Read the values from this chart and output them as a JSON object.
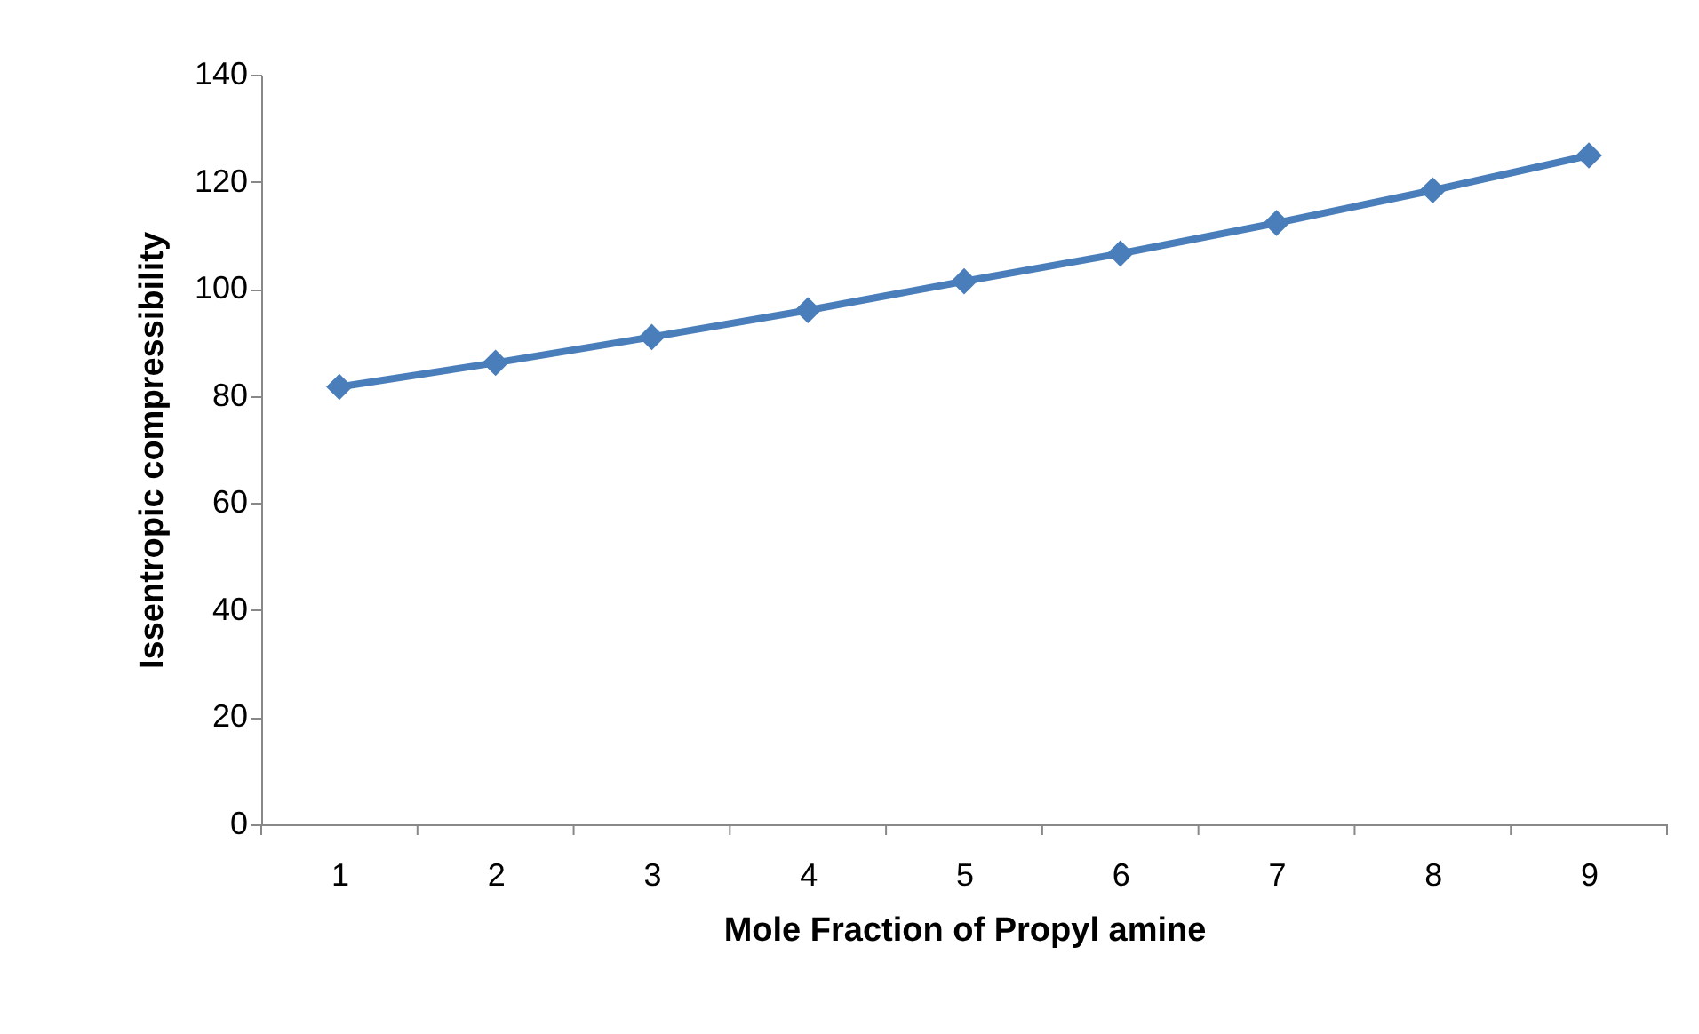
{
  "chart_data": {
    "type": "line",
    "xlabel": "Mole Fraction of Propyl amine",
    "ylabel": "Issentropic compressibility",
    "categories": [
      "1",
      "2",
      "3",
      "4",
      "5",
      "6",
      "7",
      "8",
      "9"
    ],
    "series": [
      {
        "color": "#4a7ebb",
        "values": [
          81.7,
          86.2,
          91.0,
          96.0,
          101.4,
          106.6,
          112.3,
          118.4,
          124.9
        ]
      }
    ],
    "ylim": [
      0,
      140
    ],
    "yticks": [
      0,
      20,
      40,
      60,
      80,
      100,
      120,
      140
    ],
    "grid": false,
    "legend": false,
    "marker": "diamond",
    "line_style": "solid"
  }
}
